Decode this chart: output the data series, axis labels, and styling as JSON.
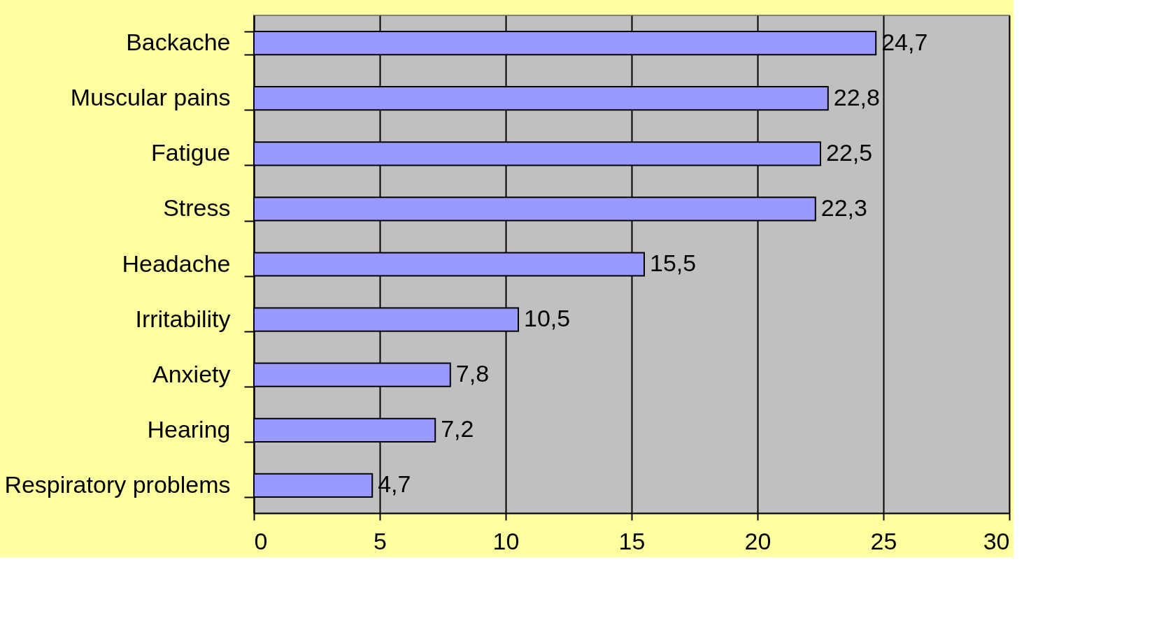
{
  "chart_data": {
    "type": "bar",
    "orientation": "horizontal",
    "categories": [
      "Backache",
      "Muscular pains",
      "Fatigue",
      "Stress",
      "Headache",
      "Irritability",
      "Anxiety",
      "Hearing",
      "Respiratory problems"
    ],
    "values": [
      24.7,
      22.8,
      22.5,
      22.3,
      15.5,
      10.5,
      7.8,
      7.2,
      4.7
    ],
    "value_labels": [
      "24,7",
      "22,8",
      "22,5",
      "22,3",
      "15,5",
      "10,5",
      "7,8",
      "7,2",
      "4,7"
    ],
    "color": "#9999ff",
    "xlim": [
      0,
      30
    ],
    "xticks": [
      0,
      5,
      10,
      15,
      20,
      25,
      30
    ],
    "grid": "x"
  }
}
